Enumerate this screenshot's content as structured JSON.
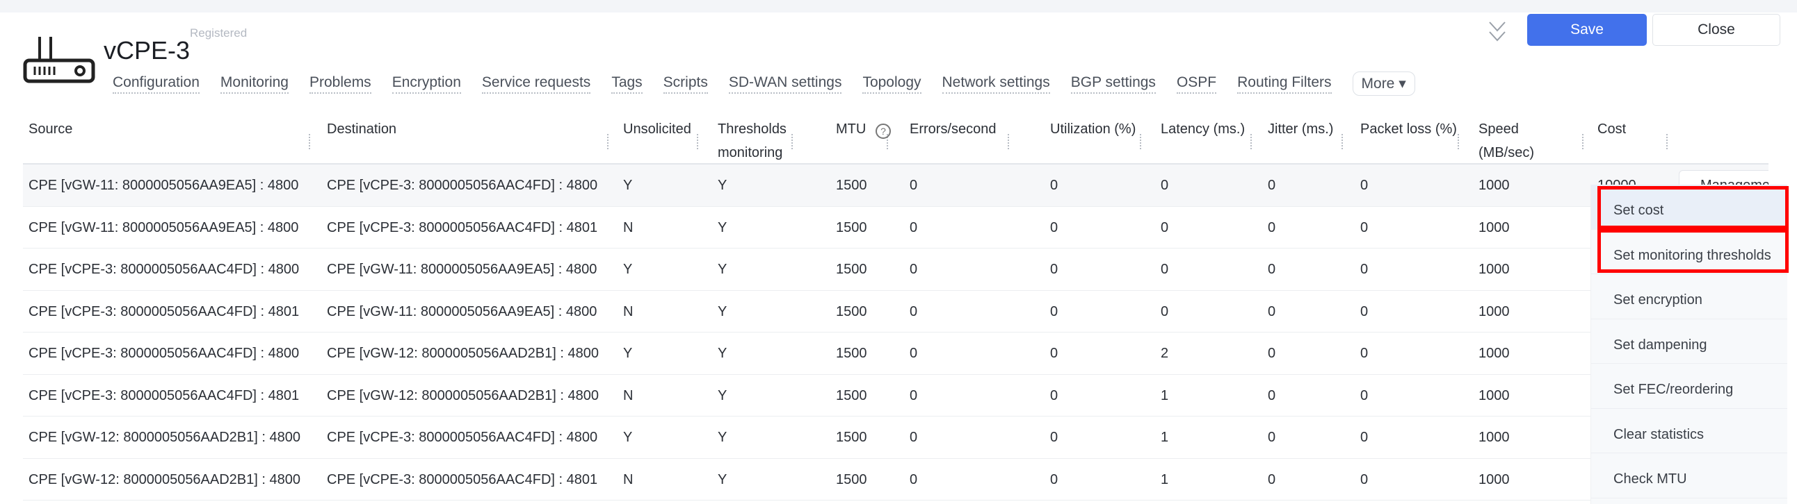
{
  "header": {
    "title": "vCPE-3",
    "status": "Registered",
    "save_label": "Save",
    "close_label": "Close",
    "more_label": "More ▾",
    "tabs": [
      "Configuration",
      "Monitoring",
      "Problems",
      "Encryption",
      "Service requests",
      "Tags",
      "Scripts",
      "SD-WAN settings",
      "Topology",
      "Network settings",
      "BGP settings",
      "OSPF",
      "Routing Filters"
    ]
  },
  "table": {
    "columns": [
      "Source",
      "Destination",
      "Unsolicited",
      "Thresholds monitoring",
      "MTU",
      "Errors/second",
      "Utilization (%)",
      "Latency (ms.)",
      "Jitter (ms.)",
      "Packet loss (%)",
      "Speed (MB/sec)",
      "Cost"
    ],
    "rows": [
      [
        "CPE [vGW-11: 8000005056AA9EA5] : 4800",
        "CPE [vCPE-3: 8000005056AAC4FD] : 4800",
        "Y",
        "Y",
        "1500",
        "0",
        "0",
        "0",
        "0",
        "0",
        "1000",
        "10000"
      ],
      [
        "CPE [vGW-11: 8000005056AA9EA5] : 4800",
        "CPE [vCPE-3: 8000005056AAC4FD] : 4801",
        "N",
        "Y",
        "1500",
        "0",
        "0",
        "0",
        "0",
        "0",
        "1000",
        ""
      ],
      [
        "CPE [vCPE-3: 8000005056AAC4FD] : 4800",
        "CPE [vGW-11: 8000005056AA9EA5] : 4800",
        "Y",
        "Y",
        "1500",
        "0",
        "0",
        "0",
        "0",
        "0",
        "1000",
        ""
      ],
      [
        "CPE [vCPE-3: 8000005056AAC4FD] : 4801",
        "CPE [vGW-11: 8000005056AA9EA5] : 4800",
        "N",
        "Y",
        "1500",
        "0",
        "0",
        "0",
        "0",
        "0",
        "1000",
        ""
      ],
      [
        "CPE [vCPE-3: 8000005056AAC4FD] : 4800",
        "CPE [vGW-12: 8000005056AAD2B1] : 4800",
        "Y",
        "Y",
        "1500",
        "0",
        "0",
        "2",
        "0",
        "0",
        "1000",
        ""
      ],
      [
        "CPE [vCPE-3: 8000005056AAC4FD] : 4801",
        "CPE [vGW-12: 8000005056AAD2B1] : 4800",
        "N",
        "Y",
        "1500",
        "0",
        "0",
        "1",
        "0",
        "0",
        "1000",
        ""
      ],
      [
        "CPE [vGW-12: 8000005056AAD2B1] : 4800",
        "CPE [vCPE-3: 8000005056AAC4FD] : 4800",
        "Y",
        "Y",
        "1500",
        "0",
        "0",
        "1",
        "0",
        "0",
        "1000",
        ""
      ],
      [
        "CPE [vGW-12: 8000005056AAD2B1] : 4800",
        "CPE [vCPE-3: 8000005056AAC4FD] : 4801",
        "N",
        "Y",
        "1500",
        "0",
        "0",
        "1",
        "0",
        "0",
        "1000",
        ""
      ]
    ],
    "management_label": "Management"
  },
  "menu": {
    "items": [
      "Set cost",
      "Set monitoring thresholds",
      "Set encryption",
      "Set dampening",
      "Set FEC/reordering",
      "Clear statistics",
      "Check MTU"
    ]
  },
  "colors": {
    "accent": "#4271eb",
    "highlight": "#ff0000"
  }
}
